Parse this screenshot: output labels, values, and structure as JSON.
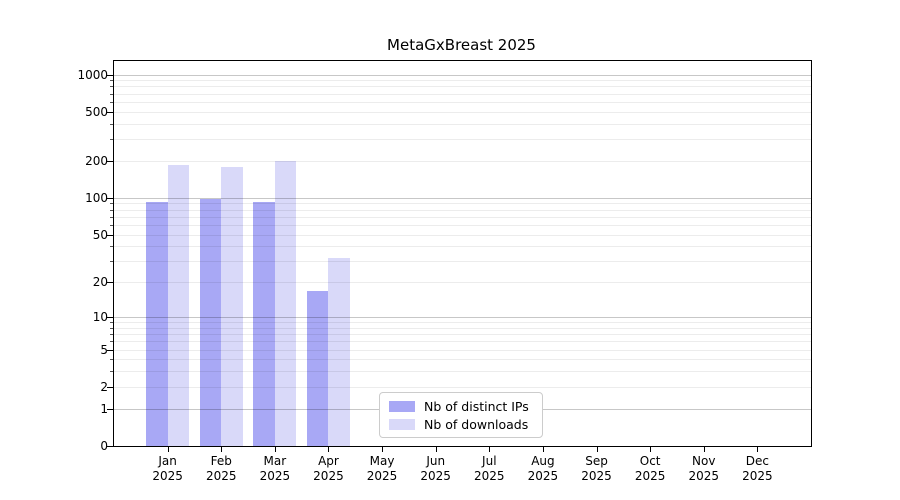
{
  "chart_data": {
    "type": "bar",
    "title": "MetaGxBreast 2025",
    "categories": [
      "Jan 2025",
      "Feb 2025",
      "Mar 2025",
      "Apr 2025",
      "May 2025",
      "Jun 2025",
      "Jul 2025",
      "Aug 2025",
      "Sep 2025",
      "Oct 2025",
      "Nov 2025",
      "Dec 2025"
    ],
    "series": [
      {
        "name": "Nb of distinct IPs",
        "color": "#a8a8f5",
        "values": [
          93,
          97,
          93,
          17,
          0,
          0,
          0,
          0,
          0,
          0,
          0,
          0
        ]
      },
      {
        "name": "Nb of downloads",
        "color": "#d9d9f9",
        "values": [
          185,
          178,
          200,
          32,
          0,
          0,
          0,
          0,
          0,
          0,
          0,
          0
        ]
      }
    ],
    "yscale": "log1p",
    "y_ticks": [
      0,
      1,
      2,
      5,
      10,
      20,
      50,
      100,
      200,
      500,
      1000
    ],
    "ylim": [
      0,
      1300
    ],
    "xlabel": "",
    "ylabel": "",
    "grid": "horizontal, minor and major",
    "legend_position": "inside bottom-center"
  }
}
